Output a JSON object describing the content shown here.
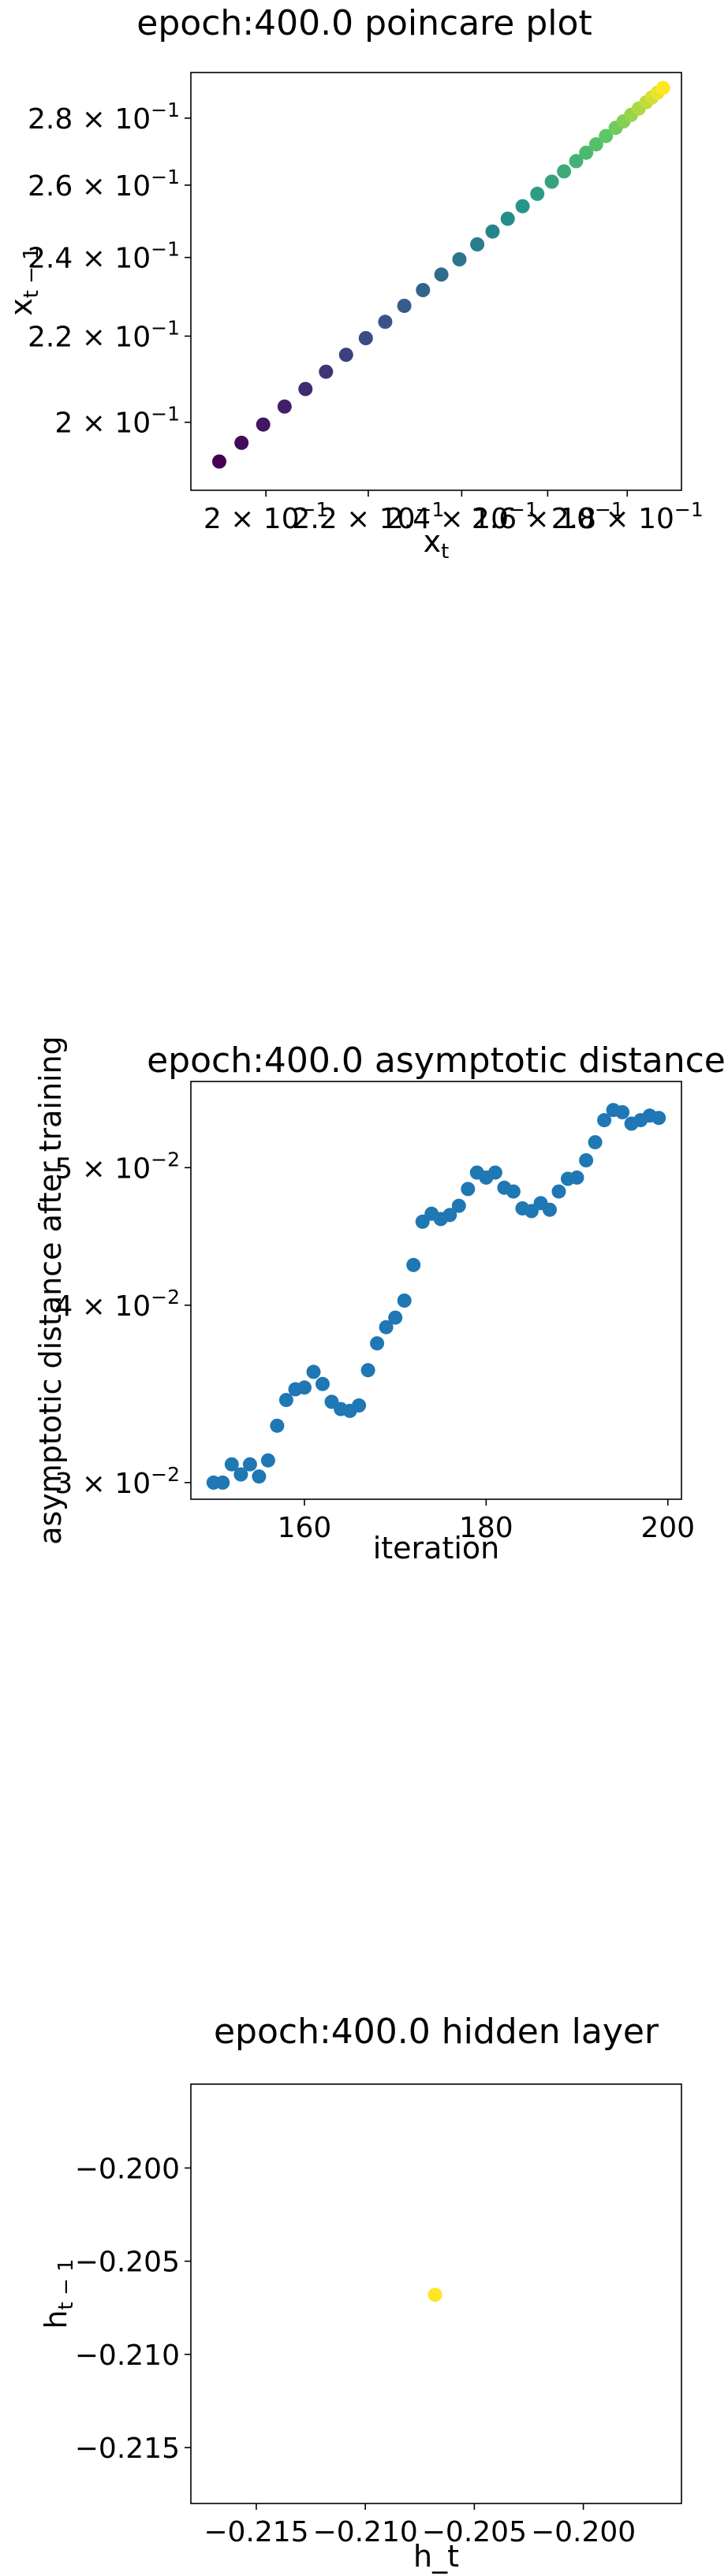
{
  "chart_data": [
    {
      "type": "scatter",
      "title": "epoch:400.0 poincare plot",
      "xlabel": "x_t",
      "ylabel": "x_{t-1}",
      "scale": "log",
      "xlim": [
        0.1865,
        0.2945
      ],
      "ylim": [
        0.1855,
        0.2945
      ],
      "xticks": [
        {
          "value": 0.2,
          "label": "2 × 10^-1"
        },
        {
          "value": 0.22,
          "label": "2.2 × 10^-1"
        },
        {
          "value": 0.24,
          "label": "2.4 × 10^-1"
        },
        {
          "value": 0.26,
          "label": "2.6 × 10^-1"
        },
        {
          "value": 0.28,
          "label": "2.8 × 10^-1"
        }
      ],
      "yticks": [
        {
          "value": 0.2,
          "label": "2 × 10^-1"
        },
        {
          "value": 0.22,
          "label": "2.2 × 10^-1"
        },
        {
          "value": 0.24,
          "label": "2.4 × 10^-1"
        },
        {
          "value": 0.26,
          "label": "2.6 × 10^-1"
        },
        {
          "value": 0.28,
          "label": "2.8 × 10^-1"
        }
      ],
      "colormap": "viridis",
      "points": [
        [
          0.1915,
          0.1915
        ],
        [
          0.1955,
          0.1955
        ],
        [
          0.1995,
          0.1995
        ],
        [
          0.2035,
          0.2035
        ],
        [
          0.2075,
          0.2075
        ],
        [
          0.2115,
          0.2115
        ],
        [
          0.2155,
          0.2155
        ],
        [
          0.2195,
          0.2195
        ],
        [
          0.2235,
          0.2235
        ],
        [
          0.2275,
          0.2275
        ],
        [
          0.2315,
          0.2315
        ],
        [
          0.2355,
          0.2355
        ],
        [
          0.2395,
          0.2395
        ],
        [
          0.2435,
          0.2435
        ],
        [
          0.247,
          0.247
        ],
        [
          0.2505,
          0.2505
        ],
        [
          0.254,
          0.254
        ],
        [
          0.2575,
          0.2575
        ],
        [
          0.261,
          0.261
        ],
        [
          0.264,
          0.264
        ],
        [
          0.267,
          0.267
        ],
        [
          0.2695,
          0.2695
        ],
        [
          0.272,
          0.272
        ],
        [
          0.2745,
          0.2745
        ],
        [
          0.277,
          0.277
        ],
        [
          0.279,
          0.279
        ],
        [
          0.281,
          0.281
        ],
        [
          0.283,
          0.283
        ],
        [
          0.285,
          0.285
        ],
        [
          0.2865,
          0.2865
        ],
        [
          0.288,
          0.288
        ],
        [
          0.2895,
          0.2895
        ]
      ]
    },
    {
      "type": "scatter",
      "title": "epoch:400.0 asymptotic distance",
      "xlabel": "iteration",
      "ylabel": "asymptotic distance after training",
      "scale": "log-y",
      "xlim": [
        147.5,
        201.5
      ],
      "ylim": [
        0.0292,
        0.0575
      ],
      "xticks": [
        {
          "value": 160,
          "label": "160"
        },
        {
          "value": 180,
          "label": "180"
        },
        {
          "value": 200,
          "label": "200"
        }
      ],
      "yticks": [
        {
          "value": 0.03,
          "label": "3 × 10^-2"
        },
        {
          "value": 0.04,
          "label": "4 × 10^-2"
        },
        {
          "value": 0.05,
          "label": "5 × 10^-2"
        }
      ],
      "color": "#1f77b4",
      "x": [
        150,
        151,
        152,
        153,
        154,
        155,
        156,
        157,
        158,
        159,
        160,
        161,
        162,
        163,
        164,
        165,
        166,
        167,
        168,
        169,
        170,
        171,
        172,
        173,
        174,
        175,
        176,
        177,
        178,
        179,
        180,
        181,
        182,
        183,
        184,
        185,
        186,
        187,
        188,
        189,
        190,
        191,
        192,
        193,
        194,
        195,
        196,
        197,
        198,
        199
      ],
      "y": [
        0.03,
        0.03,
        0.0309,
        0.0304,
        0.0309,
        0.0303,
        0.0311,
        0.0329,
        0.0343,
        0.0349,
        0.035,
        0.0359,
        0.0352,
        0.0342,
        0.0338,
        0.0337,
        0.034,
        0.036,
        0.0376,
        0.0386,
        0.0392,
        0.0403,
        0.0427,
        0.0458,
        0.0464,
        0.046,
        0.0463,
        0.047,
        0.0483,
        0.0496,
        0.0492,
        0.0496,
        0.0484,
        0.0481,
        0.0468,
        0.0466,
        0.0472,
        0.0467,
        0.0481,
        0.0491,
        0.0492,
        0.0506,
        0.0521,
        0.054,
        0.0549,
        0.0547,
        0.0537,
        0.054,
        0.0544,
        0.0542
      ]
    },
    {
      "type": "scatter",
      "title": "epoch:400.0 hidden layer",
      "xlabel": "h_t",
      "ylabel": "h_{t-1}",
      "xlim": [
        -0.218,
        -0.1955
      ],
      "ylim": [
        -0.218,
        -0.1955
      ],
      "xticks": [
        {
          "value": -0.215,
          "label": "−0.215"
        },
        {
          "value": -0.21,
          "label": "−0.210"
        },
        {
          "value": -0.205,
          "label": "−0.205"
        },
        {
          "value": -0.2,
          "label": "−0.200"
        }
      ],
      "yticks": [
        {
          "value": -0.215,
          "label": "−0.215"
        },
        {
          "value": -0.21,
          "label": "−0.210"
        },
        {
          "value": -0.205,
          "label": "−0.205"
        },
        {
          "value": -0.2,
          "label": "−0.200"
        }
      ],
      "color": "#fde725",
      "points": [
        [
          -0.2068,
          -0.2068
        ]
      ]
    }
  ]
}
